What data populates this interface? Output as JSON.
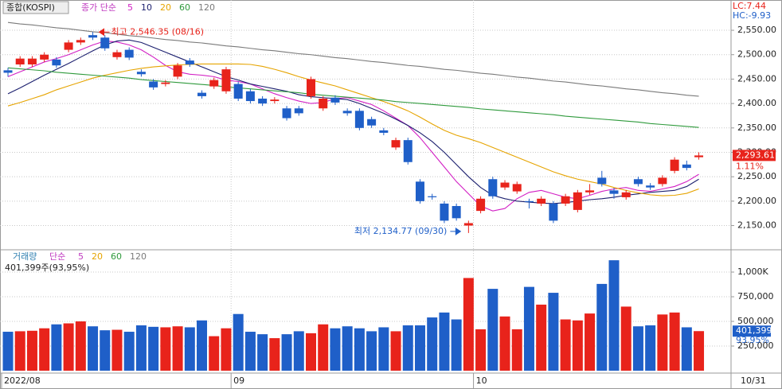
{
  "chart_data": {
    "type": "candlestick",
    "title": "종합(KOSPI)",
    "ma_legend_label": "종가 단순",
    "categories": [
      "2022/08",
      null,
      null,
      null,
      null,
      null,
      null,
      null,
      null,
      null,
      null,
      null,
      null,
      null,
      null,
      null,
      null,
      null,
      null,
      "09",
      null,
      null,
      null,
      null,
      null,
      null,
      null,
      null,
      null,
      null,
      null,
      null,
      null,
      null,
      null,
      null,
      null,
      null,
      null,
      "10",
      null,
      null,
      null,
      null,
      null,
      null,
      null,
      null,
      null,
      null,
      null,
      null,
      null,
      null,
      null,
      null,
      null,
      null
    ],
    "end_date_label": "10/31",
    "up_color": "#e8231b",
    "down_color": "#1f5fc8",
    "open": [
      2468,
      2480,
      2480,
      2490,
      2490,
      2510,
      2525,
      2540,
      2535,
      2495,
      2510,
      2465,
      2445,
      2440,
      2455,
      2488,
      2422,
      2435,
      2425,
      2440,
      2425,
      2410,
      2405,
      2390,
      2390,
      2415,
      2390,
      2412,
      2385,
      2385,
      2368,
      2345,
      2310,
      2325,
      2240,
      2210,
      2195,
      2190,
      2150,
      2180,
      2245,
      2228,
      2220,
      2200,
      2195,
      2195,
      2195,
      2182,
      2218,
      2248,
      2222,
      2208,
      2245,
      2232,
      2235,
      2262,
      2275,
      2290
    ],
    "high": [
      2473,
      2497,
      2497,
      2505,
      2495,
      2530,
      2535,
      2546.35,
      2540,
      2510,
      2515,
      2470,
      2450,
      2448,
      2483,
      2493,
      2427,
      2453,
      2475,
      2445,
      2430,
      2415,
      2413,
      2395,
      2395,
      2455,
      2415,
      2417,
      2390,
      2390,
      2373,
      2350,
      2330,
      2330,
      2245,
      2215,
      2200,
      2195,
      2160,
      2210,
      2250,
      2243,
      2240,
      2205,
      2210,
      2200,
      2215,
      2223,
      2235,
      2262,
      2227,
      2223,
      2250,
      2237,
      2253,
      2290,
      2283,
      2300
    ],
    "low": [
      2455,
      2475,
      2475,
      2485,
      2473,
      2505,
      2520,
      2530,
      2508,
      2490,
      2489,
      2455,
      2428,
      2435,
      2450,
      2475,
      2410,
      2430,
      2420,
      2405,
      2400,
      2395,
      2400,
      2365,
      2375,
      2410,
      2385,
      2397,
      2375,
      2345,
      2350,
      2335,
      2305,
      2275,
      2195,
      2203,
      2155,
      2160,
      2134.77,
      2175,
      2205,
      2223,
      2215,
      2185,
      2190,
      2155,
      2190,
      2177,
      2213,
      2230,
      2205,
      2203,
      2230,
      2223,
      2230,
      2257,
      2263,
      2285
    ],
    "close": [
      2463,
      2492,
      2492,
      2500,
      2478,
      2525,
      2530,
      2535,
      2513,
      2505,
      2494,
      2460,
      2433,
      2443,
      2478,
      2480,
      2415,
      2448,
      2470,
      2410,
      2405,
      2400,
      2408,
      2370,
      2380,
      2450,
      2410,
      2402,
      2380,
      2350,
      2355,
      2340,
      2325,
      2280,
      2200,
      2208,
      2160,
      2165,
      2155,
      2205,
      2210,
      2238,
      2235,
      2198,
      2205,
      2160,
      2210,
      2218,
      2222,
      2235,
      2215,
      2218,
      2235,
      2228,
      2248,
      2285,
      2268,
      2293.61
    ],
    "last_close_label": "2,293.61",
    "last_change_label": "1.11%",
    "lc_label": "LC:7.44",
    "hc_label": "HC:-9.93",
    "ma": [
      {
        "name": "5",
        "color": "#d21fc4",
        "values": [
          2455,
          2465,
          2475,
          2485,
          2492,
          2500,
          2510,
          2520,
          2528,
          2526,
          2520,
          2510,
          2495,
          2478,
          2465,
          2460,
          2458,
          2455,
          2448,
          2445,
          2440,
          2430,
          2420,
          2412,
          2405,
          2400,
          2402,
          2410,
          2412,
          2405,
          2398,
          2385,
          2370,
          2355,
          2330,
          2300,
          2270,
          2240,
          2215,
          2190,
          2180,
          2185,
          2205,
          2218,
          2222,
          2215,
          2208,
          2205,
          2212,
          2220,
          2225,
          2228,
          2222,
          2220,
          2225,
          2230,
          2240,
          2255
        ]
      },
      {
        "name": "10",
        "color": "#1b1f6e",
        "values": [
          2420,
          2432,
          2445,
          2458,
          2470,
          2482,
          2495,
          2508,
          2520,
          2528,
          2530,
          2525,
          2515,
          2505,
          2495,
          2485,
          2475,
          2465,
          2455,
          2448,
          2440,
          2435,
          2430,
          2425,
          2418,
          2414,
          2412,
          2410,
          2408,
          2400,
          2390,
          2380,
          2368,
          2355,
          2340,
          2322,
          2300,
          2275,
          2250,
          2228,
          2212,
          2205,
          2200,
          2198,
          2196,
          2195,
          2197,
          2200,
          2203,
          2205,
          2208,
          2212,
          2215,
          2218,
          2220,
          2222,
          2230,
          2245
        ]
      },
      {
        "name": "20",
        "color": "#e6a400",
        "values": [
          2395,
          2402,
          2410,
          2418,
          2428,
          2436,
          2444,
          2452,
          2458,
          2463,
          2468,
          2472,
          2475,
          2477,
          2479,
          2480,
          2481,
          2481,
          2481,
          2481,
          2480,
          2476,
          2470,
          2463,
          2455,
          2448,
          2442,
          2436,
          2428,
          2420,
          2412,
          2404,
          2395,
          2385,
          2372,
          2358,
          2345,
          2335,
          2328,
          2320,
          2310,
          2300,
          2290,
          2280,
          2270,
          2260,
          2252,
          2245,
          2240,
          2235,
          2228,
          2222,
          2217,
          2213,
          2211,
          2212,
          2216,
          2225
        ]
      },
      {
        "name": "60",
        "color": "#2f9a3c",
        "values": [
          2473,
          2471,
          2469,
          2467,
          2464,
          2462,
          2460,
          2458,
          2456,
          2454,
          2452,
          2449,
          2447,
          2445,
          2443,
          2441,
          2439,
          2437,
          2434,
          2432,
          2430,
          2428,
          2426,
          2424,
          2422,
          2419,
          2417,
          2415,
          2413,
          2411,
          2409,
          2407,
          2404,
          2402,
          2400,
          2398,
          2396,
          2394,
          2392,
          2389,
          2387,
          2385,
          2383,
          2381,
          2379,
          2377,
          2374,
          2372,
          2370,
          2368,
          2366,
          2364,
          2362,
          2359,
          2357,
          2355,
          2353,
          2351
        ]
      },
      {
        "name": "120",
        "color": "#7a7a7a",
        "values": [
          2566,
          2563,
          2561,
          2558,
          2555,
          2553,
          2550,
          2547,
          2545,
          2542,
          2539,
          2537,
          2534,
          2531,
          2529,
          2526,
          2524,
          2521,
          2518,
          2516,
          2513,
          2510,
          2508,
          2505,
          2502,
          2500,
          2497,
          2494,
          2492,
          2489,
          2486,
          2484,
          2481,
          2478,
          2476,
          2473,
          2470,
          2468,
          2465,
          2462,
          2460,
          2457,
          2454,
          2452,
          2449,
          2446,
          2444,
          2441,
          2438,
          2436,
          2433,
          2430,
          2428,
          2425,
          2422,
          2420,
          2417,
          2415
        ]
      }
    ],
    "ylim": [
      2102,
      2612
    ],
    "yticks": [
      {
        "value": 2550,
        "label": "2,550.00"
      },
      {
        "value": 2500,
        "label": "2,500.00"
      },
      {
        "value": 2450,
        "label": "2,450.00"
      },
      {
        "value": 2400,
        "label": "2,400.00"
      },
      {
        "value": 2350,
        "label": "2,350.00"
      },
      {
        "value": 2300,
        "label": "2,300.00"
      },
      {
        "value": 2250,
        "label": "2,250.00"
      },
      {
        "value": 2200,
        "label": "2,200.00"
      },
      {
        "value": 2150,
        "label": "2,150.00"
      }
    ],
    "grid": true,
    "annotations": [
      {
        "text": "최고 2,546.35 (08/16)"
      },
      {
        "text": "최저 2,134.77 (09/30)"
      }
    ],
    "volume": {
      "title": "거래량",
      "ma_legend_label": "단순",
      "ma_names": [
        {
          "name": "5",
          "color": "#c03cc0"
        },
        {
          "name": "20",
          "color": "#e6a400"
        },
        {
          "name": "60",
          "color": "#2f9a3c"
        },
        {
          "name": "120",
          "color": "#7a7a7a"
        }
      ],
      "info_label": "401,399주(93,95%)",
      "values": [
        395000,
        400000,
        405000,
        430000,
        470000,
        480000,
        500000,
        450000,
        410000,
        415000,
        395000,
        460000,
        445000,
        440000,
        450000,
        440000,
        510000,
        350000,
        430000,
        575000,
        395000,
        370000,
        330000,
        370000,
        400000,
        380000,
        470000,
        430000,
        450000,
        430000,
        400000,
        440000,
        400000,
        460000,
        460000,
        540000,
        590000,
        520000,
        940000,
        420000,
        830000,
        550000,
        420000,
        850000,
        670000,
        790000,
        520000,
        510000,
        580000,
        880000,
        1120000,
        650000,
        450000,
        460000,
        570000,
        590000,
        440000,
        401399
      ],
      "last_label": "401,399",
      "last_ratio_label": "93.95%",
      "ylim": [
        0,
        1218000
      ],
      "yticks": [
        {
          "value": 1000000,
          "label": "1,000K"
        },
        {
          "value": 750000,
          "label": "750,000"
        },
        {
          "value": 500000,
          "label": "500,000"
        },
        {
          "value": 250000,
          "label": "250,000"
        }
      ]
    }
  }
}
